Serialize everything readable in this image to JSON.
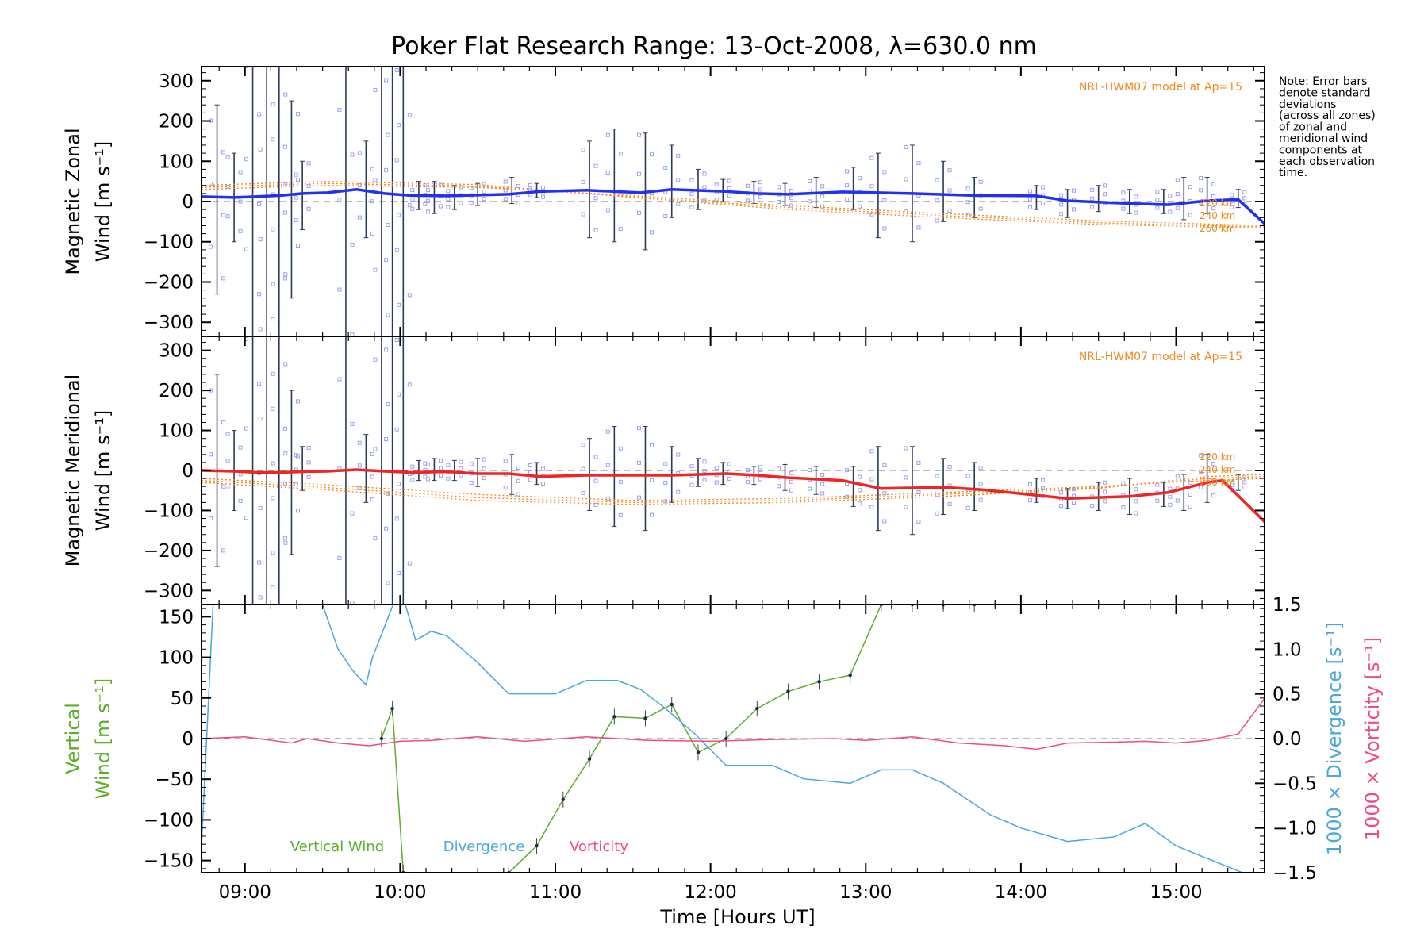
{
  "title": "Poker Flat Research Range: 13-Oct-2008, λ=630.0 nm",
  "note": [
    "Note: Error bars",
    "denote standard",
    "deviations",
    "(across all zones)",
    "of zonal and",
    "meridional wind",
    "components at",
    "each observation",
    "time."
  ],
  "xlabel": "Time [Hours UT]",
  "colors": {
    "zonal": "#2430f0",
    "meridional": "#f02424",
    "model": "#f08a1e",
    "vertical": "#5cae2a",
    "divergence": "#4aa8d8",
    "vorticity": "#f04a8a",
    "scatter": "#a0a0ee"
  },
  "chart_data": [
    {
      "type": "line",
      "panel": "zonal",
      "ylabel_lines": [
        "Magnetic Zonal",
        "Wind [m s⁻¹]"
      ],
      "xlim": [
        8.72,
        15.57
      ],
      "ylim": [
        -335,
        335
      ],
      "x_ticks": [
        9,
        10,
        11,
        12,
        13,
        14,
        15
      ],
      "x_tick_labels": [
        "09:00",
        "10:00",
        "11:00",
        "12:00",
        "13:00",
        "14:00",
        "15:00"
      ],
      "y_ticks": [
        300,
        200,
        100,
        0,
        -100,
        -200,
        -300
      ],
      "y_tick_labels": [
        "300",
        "200",
        "100",
        "0",
        "−100",
        "−200",
        "−300"
      ],
      "model_label": "NRL-HWM07 model at Ap=15",
      "model_series": [
        {
          "name": "220 km",
          "x": [
            8.72,
            9.5,
            10.5,
            11.5,
            12.5,
            13.5,
            14.5,
            15.57
          ],
          "values": [
            30,
            40,
            35,
            15,
            -10,
            -30,
            -48,
            -60
          ]
        },
        {
          "name": "240 km",
          "x": [
            8.72,
            9.5,
            10.5,
            11.5,
            12.5,
            13.5,
            14.5,
            15.57
          ],
          "values": [
            35,
            45,
            38,
            12,
            -15,
            -35,
            -53,
            -63
          ]
        },
        {
          "name": "260 km",
          "x": [
            8.72,
            9.5,
            10.5,
            11.5,
            12.5,
            13.5,
            14.5,
            15.57
          ],
          "values": [
            40,
            50,
            42,
            10,
            -20,
            -40,
            -57,
            -66
          ]
        }
      ],
      "series": [
        {
          "name": "zonal",
          "x": [
            8.72,
            8.93,
            9.07,
            9.23,
            9.37,
            9.53,
            9.72,
            9.9,
            10.07,
            10.3,
            10.5,
            10.7,
            10.9,
            11.2,
            11.55,
            11.75,
            12.1,
            12.3,
            12.5,
            12.85,
            13.3,
            13.7,
            14.1,
            14.3,
            14.7,
            14.95,
            15.2,
            15.4,
            15.57
          ],
          "values": [
            12,
            10,
            12,
            15,
            20,
            22,
            30,
            20,
            15,
            14,
            16,
            18,
            25,
            28,
            22,
            30,
            25,
            20,
            18,
            24,
            20,
            15,
            14,
            2,
            -5,
            -8,
            2,
            5,
            -55
          ]
        }
      ],
      "error_bars": [
        {
          "x": 8.82,
          "low": -230,
          "high": 240
        },
        {
          "x": 8.93,
          "low": -100,
          "high": 120
        },
        {
          "x": 9.05,
          "low": -335,
          "high": 335
        },
        {
          "x": 9.14,
          "low": -335,
          "high": 335
        },
        {
          "x": 9.22,
          "low": -335,
          "high": 335
        },
        {
          "x": 9.3,
          "low": -240,
          "high": 250
        },
        {
          "x": 9.37,
          "low": -70,
          "high": 100
        },
        {
          "x": 9.65,
          "low": -335,
          "high": 335
        },
        {
          "x": 9.78,
          "low": -90,
          "high": 150
        },
        {
          "x": 9.88,
          "low": -335,
          "high": 335
        },
        {
          "x": 9.95,
          "low": -335,
          "high": 335
        },
        {
          "x": 10.02,
          "low": -335,
          "high": 335
        },
        {
          "x": 10.12,
          "low": -20,
          "high": 50
        },
        {
          "x": 10.22,
          "low": -30,
          "high": 50
        },
        {
          "x": 10.35,
          "low": -20,
          "high": 40
        },
        {
          "x": 10.5,
          "low": -10,
          "high": 45
        },
        {
          "x": 10.72,
          "low": -5,
          "high": 60
        },
        {
          "x": 10.88,
          "low": 10,
          "high": 45
        },
        {
          "x": 11.22,
          "low": -90,
          "high": 150
        },
        {
          "x": 11.38,
          "low": -100,
          "high": 180
        },
        {
          "x": 11.58,
          "low": -120,
          "high": 170
        },
        {
          "x": 11.75,
          "low": -40,
          "high": 140
        },
        {
          "x": 11.92,
          "low": -20,
          "high": 80
        },
        {
          "x": 12.08,
          "low": 0,
          "high": 55
        },
        {
          "x": 12.28,
          "low": -5,
          "high": 50
        },
        {
          "x": 12.48,
          "low": -10,
          "high": 45
        },
        {
          "x": 12.68,
          "low": -15,
          "high": 60
        },
        {
          "x": 12.92,
          "low": -20,
          "high": 85
        },
        {
          "x": 13.08,
          "low": -90,
          "high": 120
        },
        {
          "x": 13.3,
          "low": -100,
          "high": 140
        },
        {
          "x": 13.5,
          "low": -50,
          "high": 100
        },
        {
          "x": 13.7,
          "low": -40,
          "high": 60
        },
        {
          "x": 14.1,
          "low": -20,
          "high": 40
        },
        {
          "x": 14.3,
          "low": -40,
          "high": 30
        },
        {
          "x": 14.5,
          "low": -25,
          "high": 40
        },
        {
          "x": 14.7,
          "low": -30,
          "high": 30
        },
        {
          "x": 14.92,
          "low": -30,
          "high": 30
        },
        {
          "x": 15.05,
          "low": -45,
          "high": 60
        },
        {
          "x": 15.2,
          "low": -30,
          "high": 60
        },
        {
          "x": 15.4,
          "low": -15,
          "high": 30
        }
      ]
    },
    {
      "type": "line",
      "panel": "meridional",
      "ylabel_lines": [
        "Magnetic Meridional",
        "Wind [m s⁻¹]"
      ],
      "xlim": [
        8.72,
        15.57
      ],
      "ylim": [
        -335,
        335
      ],
      "x_ticks": [
        9,
        10,
        11,
        12,
        13,
        14,
        15
      ],
      "y_ticks": [
        300,
        200,
        100,
        0,
        -100,
        -200,
        -300
      ],
      "y_tick_labels": [
        "300",
        "200",
        "100",
        "0",
        "−100",
        "−200",
        "−300"
      ],
      "model_label": "NRL-HWM07 model at Ap=15",
      "model_series": [
        {
          "name": "220 km",
          "x": [
            8.72,
            9.5,
            10.5,
            11.5,
            12.5,
            13.5,
            14.5,
            15.2,
            15.57
          ],
          "values": [
            -20,
            -35,
            -60,
            -75,
            -70,
            -55,
            -40,
            -25,
            -20
          ]
        },
        {
          "name": "240 km",
          "x": [
            8.72,
            9.5,
            10.5,
            11.5,
            12.5,
            13.5,
            14.5,
            15.2,
            15.57
          ],
          "values": [
            -25,
            -42,
            -68,
            -80,
            -75,
            -60,
            -43,
            -20,
            -15
          ]
        },
        {
          "name": "260 km",
          "x": [
            8.72,
            9.5,
            10.5,
            11.5,
            12.5,
            13.5,
            14.5,
            15.2,
            15.57
          ],
          "values": [
            -30,
            -48,
            -75,
            -85,
            -80,
            -65,
            -45,
            -15,
            -10
          ]
        }
      ],
      "series": [
        {
          "name": "meridional",
          "x": [
            8.72,
            8.93,
            9.07,
            9.23,
            9.37,
            9.53,
            9.72,
            9.9,
            10.07,
            10.3,
            10.5,
            10.7,
            10.9,
            11.2,
            11.55,
            11.75,
            12.1,
            12.3,
            12.5,
            12.85,
            13.1,
            13.5,
            13.75,
            14.3,
            14.7,
            14.95,
            15.2,
            15.3,
            15.57
          ],
          "values": [
            0,
            -2,
            -5,
            -5,
            -3,
            -2,
            2,
            -2,
            -5,
            -3,
            -8,
            -8,
            -15,
            -12,
            -12,
            -12,
            -8,
            -12,
            -18,
            -25,
            -45,
            -42,
            -48,
            -70,
            -65,
            -55,
            -30,
            -25,
            -128
          ]
        }
      ],
      "error_bars": [
        {
          "x": 8.82,
          "low": -240,
          "high": 240
        },
        {
          "x": 8.93,
          "low": -100,
          "high": 100
        },
        {
          "x": 9.05,
          "low": -335,
          "high": 335
        },
        {
          "x": 9.14,
          "low": -335,
          "high": 335
        },
        {
          "x": 9.22,
          "low": -335,
          "high": 335
        },
        {
          "x": 9.3,
          "low": -210,
          "high": 200
        },
        {
          "x": 9.37,
          "low": -50,
          "high": 60
        },
        {
          "x": 9.65,
          "low": -335,
          "high": 335
        },
        {
          "x": 9.78,
          "low": -80,
          "high": 90
        },
        {
          "x": 9.88,
          "low": -335,
          "high": 335
        },
        {
          "x": 9.95,
          "low": -335,
          "high": 335
        },
        {
          "x": 10.02,
          "low": -335,
          "high": 335
        },
        {
          "x": 10.12,
          "low": -25,
          "high": 25
        },
        {
          "x": 10.22,
          "low": -25,
          "high": 30
        },
        {
          "x": 10.35,
          "low": -25,
          "high": 25
        },
        {
          "x": 10.5,
          "low": -40,
          "high": 30
        },
        {
          "x": 10.72,
          "low": -60,
          "high": 40
        },
        {
          "x": 10.88,
          "low": -35,
          "high": 20
        },
        {
          "x": 11.22,
          "low": -100,
          "high": 80
        },
        {
          "x": 11.38,
          "low": -140,
          "high": 110
        },
        {
          "x": 11.58,
          "low": -150,
          "high": 110
        },
        {
          "x": 11.75,
          "low": -80,
          "high": 60
        },
        {
          "x": 11.92,
          "low": -40,
          "high": 30
        },
        {
          "x": 12.08,
          "low": -35,
          "high": 20
        },
        {
          "x": 12.28,
          "low": -35,
          "high": 10
        },
        {
          "x": 12.48,
          "low": -50,
          "high": 15
        },
        {
          "x": 12.68,
          "low": -60,
          "high": 10
        },
        {
          "x": 12.92,
          "low": -90,
          "high": 10
        },
        {
          "x": 13.08,
          "low": -150,
          "high": 60
        },
        {
          "x": 13.3,
          "low": -160,
          "high": 60
        },
        {
          "x": 13.5,
          "low": -110,
          "high": 30
        },
        {
          "x": 13.7,
          "low": -100,
          "high": 20
        },
        {
          "x": 14.1,
          "low": -80,
          "high": -20
        },
        {
          "x": 14.3,
          "low": -95,
          "high": -45
        },
        {
          "x": 14.5,
          "low": -100,
          "high": -30
        },
        {
          "x": 14.7,
          "low": -110,
          "high": -20
        },
        {
          "x": 14.92,
          "low": -90,
          "high": -30
        },
        {
          "x": 15.05,
          "low": -100,
          "high": -10
        },
        {
          "x": 15.2,
          "low": -80,
          "high": 40
        },
        {
          "x": 15.4,
          "low": -50,
          "high": -10
        }
      ],
      "extra_labels": [
        "220 km",
        "240 km",
        "260 km"
      ]
    },
    {
      "type": "line",
      "panel": "vertical",
      "ylabel_lines": [
        "Vertical",
        "Wind [m s⁻¹]"
      ],
      "right_ylabel_divergence": "1000 × Divergence [s⁻¹]",
      "right_ylabel_vorticity": "1000 × Vorticity [s⁻¹]",
      "xlim": [
        8.72,
        15.57
      ],
      "ylim": [
        -165,
        165
      ],
      "y_ticks": [
        150,
        100,
        50,
        0,
        -50,
        -100,
        -150
      ],
      "y_tick_labels": [
        "150",
        "100",
        "50",
        "0",
        "−50",
        "−100",
        "−150"
      ],
      "right_ylim": [
        -1.5,
        1.5
      ],
      "right_ticks": [
        1.5,
        1.0,
        0.5,
        0.0,
        -0.5,
        -1.0,
        -1.5
      ],
      "right_tick_labels": [
        "1.5",
        "1.0",
        "0.5",
        "0.0",
        "−0.5",
        "−1.0",
        "−1.5"
      ],
      "x_tick_labels": [
        "09:00",
        "10:00",
        "11:00",
        "12:00",
        "13:00",
        "14:00",
        "15:00"
      ],
      "legend": [
        "Vertical Wind",
        "Divergence",
        "Vorticity"
      ],
      "series": [
        {
          "name": "Vertical Wind",
          "axis": "left",
          "x": [
            9.88,
            9.95,
            10.02,
            10.7,
            10.88,
            11.05,
            11.22,
            11.38,
            11.58,
            11.75,
            11.92,
            12.1,
            12.3,
            12.5,
            12.7,
            12.9,
            13.1,
            13.3,
            13.5,
            13.7
          ],
          "values": [
            0,
            37,
            -165,
            -165,
            -132,
            -75,
            -25,
            27,
            25,
            42,
            -17,
            0,
            37,
            58,
            70,
            78,
            165,
            165,
            165,
            165
          ]
        },
        {
          "name": "Divergence",
          "axis": "right",
          "x": [
            8.72,
            8.8,
            9.5,
            9.6,
            9.7,
            9.78,
            9.82,
            10.0,
            10.1,
            10.2,
            10.3,
            10.5,
            10.7,
            11.0,
            11.2,
            11.4,
            11.55,
            11.7,
            11.9,
            12.1,
            12.4,
            12.6,
            12.9,
            13.1,
            13.3,
            13.5,
            13.8,
            14.0,
            14.3,
            14.6,
            14.8,
            15.0,
            15.57
          ],
          "values": [
            -1.2,
            1.7,
            1.5,
            1.0,
            0.75,
            0.6,
            0.9,
            1.7,
            1.1,
            1.2,
            1.15,
            0.85,
            0.5,
            0.5,
            0.65,
            0.65,
            0.55,
            0.35,
            0.05,
            -0.3,
            -0.3,
            -0.45,
            -0.5,
            -0.35,
            -0.35,
            -0.5,
            -0.85,
            -1.0,
            -1.15,
            -1.1,
            -0.95,
            -1.2,
            -1.6
          ]
        },
        {
          "name": "Vorticity",
          "axis": "right",
          "x": [
            8.72,
            9.0,
            9.3,
            9.4,
            9.6,
            9.8,
            10.0,
            10.2,
            10.5,
            10.8,
            11.2,
            11.6,
            12.0,
            12.4,
            12.8,
            13.0,
            13.3,
            13.6,
            13.9,
            14.1,
            14.3,
            14.6,
            14.8,
            15.0,
            15.2,
            15.4,
            15.57
          ],
          "values": [
            0.0,
            0.02,
            -0.05,
            0.0,
            -0.05,
            -0.08,
            -0.03,
            -0.02,
            0.02,
            -0.03,
            0.02,
            -0.02,
            -0.03,
            -0.01,
            0.0,
            -0.02,
            0.02,
            -0.05,
            -0.08,
            -0.12,
            -0.05,
            -0.04,
            -0.03,
            -0.05,
            -0.02,
            0.05,
            0.45
          ]
        }
      ]
    }
  ]
}
